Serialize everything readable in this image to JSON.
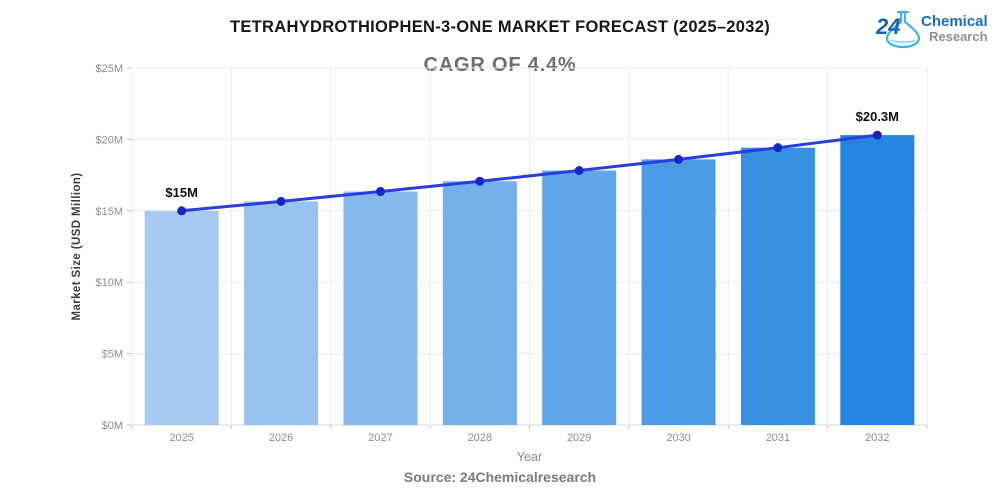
{
  "header": {
    "title": "TETRAHYDROTHIOPHEN-3-ONE MARKET FORECAST (2025–2032)",
    "subtitle": "CAGR OF 4.4%",
    "logo": {
      "number": "24",
      "top": "Chemical",
      "bottom": "Research",
      "flask_color": "#3cb4e5",
      "blue": "#1b6ec8",
      "gray": "#909090"
    }
  },
  "chart_data": {
    "type": "bar",
    "categories": [
      "2025",
      "2026",
      "2027",
      "2028",
      "2029",
      "2030",
      "2031",
      "2032"
    ],
    "series": [
      {
        "name": "Market Size",
        "type": "bar",
        "values": [
          15,
          15.66,
          16.35,
          17.07,
          17.82,
          18.6,
          19.42,
          20.3
        ],
        "bar_colors": [
          "#a7cbf0",
          "#97c3ee",
          "#86baec",
          "#74b0e9",
          "#61a6e7",
          "#4c9be5",
          "#3991e2",
          "#2484df"
        ]
      },
      {
        "name": "Trend",
        "type": "line",
        "values": [
          15,
          15.66,
          16.35,
          17.07,
          17.82,
          18.6,
          19.42,
          20.3
        ],
        "line_color": "#2b3edd",
        "dot_color": "#1627c6"
      }
    ],
    "annotations": [
      {
        "category": "2025",
        "text": "$15M"
      },
      {
        "category": "2032",
        "text": "$20.3M"
      }
    ],
    "title": "TETRAHYDROTHIOPHEN-3-ONE MARKET FORECAST (2025–2032)",
    "subtitle": "CAGR OF 4.4%",
    "xlabel": "Year",
    "ylabel": "Market Size (USD Million)",
    "ylim": [
      0,
      25
    ],
    "yticks": [
      "$0M",
      "$5M",
      "$10M",
      "$15M",
      "$20M",
      "$25M"
    ],
    "grid": true,
    "legend": "none",
    "grid_color": "#ececec",
    "axis_color": "#d8d8d8",
    "tick_color": "#c6c6c6"
  },
  "footer": {
    "source": "Source: 24Chemicalresearch"
  }
}
